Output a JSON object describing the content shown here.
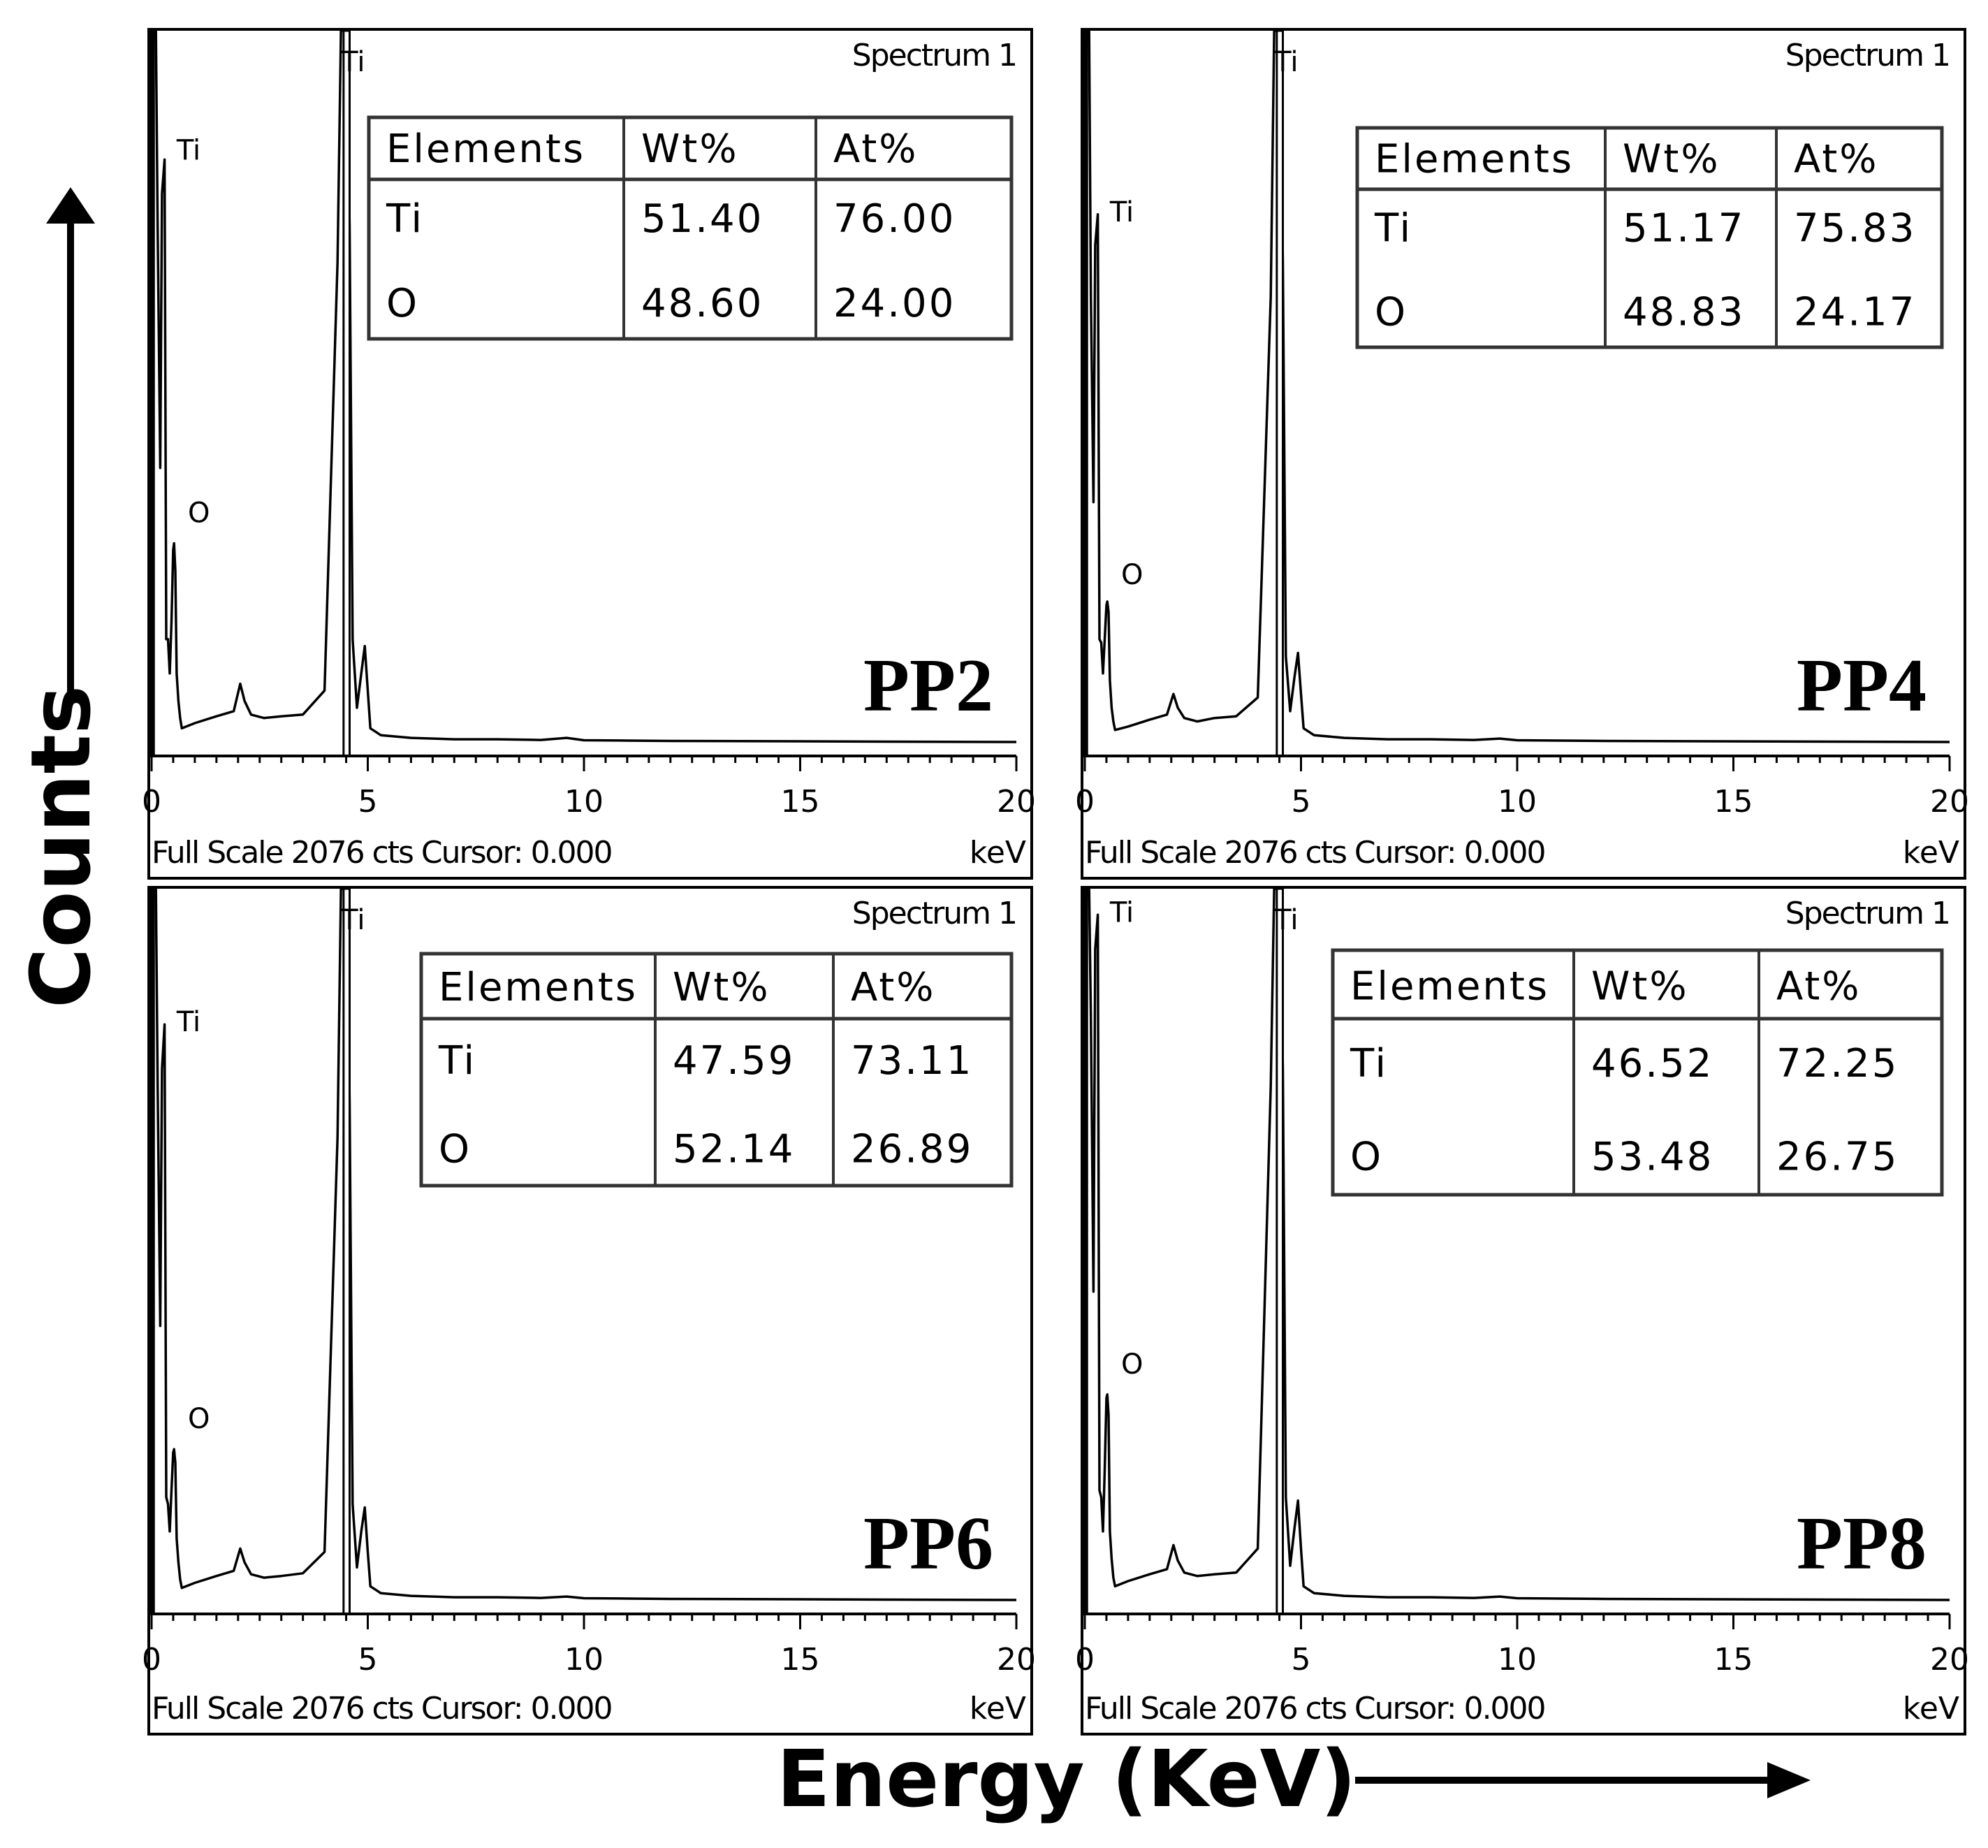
{
  "figure": {
    "y_axis_label": "Counts",
    "x_axis_label": "Energy (KeV)"
  },
  "chart_data": [
    {
      "type": "line",
      "panel": "PP2",
      "title": "Spectrum 1",
      "xlabel": "keV",
      "footer": "Full Scale 2076 cts Cursor: 0.000",
      "x_ticks": [
        "0",
        "5",
        "10",
        "15",
        "20"
      ],
      "xlim": [
        0,
        20
      ],
      "ylim": [
        0,
        2076
      ],
      "peaks": [
        {
          "label": "Ti",
          "x": 0.45,
          "y": 1720
        },
        {
          "label": "O",
          "x": 0.55,
          "y": 580
        },
        {
          "label": "Ti",
          "x": 4.51,
          "y": 2076
        }
      ],
      "x": [
        0,
        0.06,
        0.1,
        0.14,
        0.2,
        0.24,
        0.3,
        0.34,
        0.38,
        0.42,
        0.46,
        0.5,
        0.52,
        0.55,
        0.58,
        0.62,
        0.66,
        0.7,
        1,
        1.5,
        1.9,
        2.05,
        2.15,
        2.3,
        2.6,
        3,
        3.5,
        4,
        4.3,
        4.38,
        4.45,
        4.51,
        4.58,
        4.65,
        4.75,
        4.85,
        4.93,
        5,
        5.06,
        5.3,
        6,
        7,
        8,
        9,
        9.6,
        10,
        11,
        12,
        20
      ],
      "y": [
        2000,
        2076,
        2076,
        1500,
        800,
        1600,
        1700,
        300,
        300,
        200,
        350,
        560,
        580,
        500,
        200,
        120,
        70,
        40,
        55,
        75,
        90,
        170,
        120,
        80,
        70,
        75,
        80,
        150,
        1400,
        2076,
        2076,
        2076,
        1500,
        300,
        100,
        200,
        280,
        150,
        40,
        20,
        12,
        8,
        8,
        6,
        12,
        5,
        4,
        3,
        0
      ],
      "table": {
        "headers": [
          "Elements",
          "Wt%",
          "At%"
        ],
        "rows": [
          [
            "Ti",
            "51.40",
            "76.00"
          ],
          [
            "O",
            "48.60",
            "24.00"
          ]
        ]
      }
    },
    {
      "type": "line",
      "panel": "PP4",
      "title": "Spectrum 1",
      "xlabel": "keV",
      "footer": "Full Scale 2076 cts Cursor: 0.000",
      "x_ticks": [
        "0",
        "5",
        "10",
        "15",
        "20"
      ],
      "xlim": [
        0,
        20
      ],
      "ylim": [
        0,
        2076
      ],
      "peaks": [
        {
          "label": "Ti",
          "x": 0.45,
          "y": 1540
        },
        {
          "label": "O",
          "x": 0.55,
          "y": 400
        },
        {
          "label": "Ti",
          "x": 4.51,
          "y": 2076
        }
      ],
      "x": [
        0,
        0.06,
        0.1,
        0.14,
        0.2,
        0.24,
        0.3,
        0.34,
        0.38,
        0.42,
        0.46,
        0.5,
        0.52,
        0.55,
        0.58,
        0.62,
        0.66,
        0.7,
        1,
        1.5,
        1.9,
        2.05,
        2.15,
        2.3,
        2.6,
        3,
        3.5,
        4,
        4.3,
        4.38,
        4.45,
        4.51,
        4.58,
        4.65,
        4.75,
        4.85,
        4.93,
        5,
        5.06,
        5.3,
        6,
        7,
        8,
        9,
        9.6,
        10,
        11,
        12,
        20
      ],
      "y": [
        2000,
        2076,
        2076,
        1300,
        700,
        1450,
        1540,
        300,
        290,
        200,
        300,
        400,
        410,
        380,
        180,
        100,
        60,
        35,
        45,
        65,
        80,
        140,
        100,
        70,
        60,
        70,
        75,
        130,
        1300,
        2076,
        2076,
        2076,
        1400,
        250,
        90,
        190,
        260,
        140,
        40,
        20,
        12,
        8,
        8,
        6,
        10,
        5,
        4,
        3,
        0
      ],
      "table": {
        "headers": [
          "Elements",
          "Wt%",
          "At%"
        ],
        "rows": [
          [
            "Ti",
            "51.17",
            "75.83"
          ],
          [
            "O",
            "48.83",
            "24.17"
          ]
        ]
      }
    },
    {
      "type": "line",
      "panel": "PP6",
      "title": "Spectrum 1",
      "xlabel": "keV",
      "footer": "Full Scale 2076 cts Cursor: 0.000",
      "x_ticks": [
        "0",
        "5",
        "10",
        "15",
        "20"
      ],
      "xlim": [
        0,
        20
      ],
      "ylim": [
        0,
        2076
      ],
      "peaks": [
        {
          "label": "Ti",
          "x": 0.45,
          "y": 1680
        },
        {
          "label": "O",
          "x": 0.55,
          "y": 440
        },
        {
          "label": "Ti",
          "x": 4.51,
          "y": 2076
        }
      ],
      "x": [
        0,
        0.06,
        0.1,
        0.14,
        0.2,
        0.24,
        0.3,
        0.34,
        0.38,
        0.42,
        0.46,
        0.5,
        0.52,
        0.55,
        0.58,
        0.62,
        0.66,
        0.7,
        1,
        1.5,
        1.9,
        2.05,
        2.15,
        2.3,
        2.6,
        3,
        3.5,
        4,
        4.3,
        4.38,
        4.45,
        4.51,
        4.58,
        4.65,
        4.75,
        4.85,
        4.93,
        5,
        5.06,
        5.3,
        6,
        7,
        8,
        9,
        9.6,
        10,
        11,
        12,
        20
      ],
      "y": [
        2000,
        2076,
        2076,
        1500,
        800,
        1550,
        1680,
        300,
        280,
        200,
        320,
        430,
        440,
        400,
        180,
        110,
        60,
        35,
        50,
        70,
        85,
        150,
        110,
        75,
        65,
        70,
        78,
        140,
        1350,
        2076,
        2076,
        2076,
        1450,
        280,
        95,
        200,
        270,
        140,
        40,
        20,
        12,
        8,
        8,
        6,
        10,
        5,
        4,
        3,
        0
      ],
      "table": {
        "headers": [
          "Elements",
          "Wt%",
          "At%"
        ],
        "rows": [
          [
            "Ti",
            "47.59",
            "73.11"
          ],
          [
            "O",
            "52.14",
            "26.89"
          ]
        ]
      }
    },
    {
      "type": "line",
      "panel": "PP8",
      "title": "Spectrum 1",
      "xlabel": "keV",
      "footer": "Full Scale 2076 cts Cursor: 0.000",
      "x_ticks": [
        "0",
        "5",
        "10",
        "15",
        "20"
      ],
      "xlim": [
        0,
        20
      ],
      "ylim": [
        0,
        2076
      ],
      "peaks": [
        {
          "label": "Ti",
          "x": 0.45,
          "y": 2000
        },
        {
          "label": "O",
          "x": 0.55,
          "y": 600
        },
        {
          "label": "Ti",
          "x": 4.51,
          "y": 2076
        }
      ],
      "x": [
        0,
        0.06,
        0.1,
        0.14,
        0.2,
        0.24,
        0.3,
        0.34,
        0.38,
        0.42,
        0.46,
        0.5,
        0.52,
        0.55,
        0.58,
        0.62,
        0.66,
        0.7,
        1,
        1.5,
        1.9,
        2.05,
        2.15,
        2.3,
        2.6,
        3,
        3.5,
        4,
        4.3,
        4.38,
        4.45,
        4.51,
        4.58,
        4.65,
        4.75,
        4.85,
        4.93,
        5,
        5.06,
        5.3,
        6,
        7,
        8,
        9,
        9.6,
        10,
        11,
        12,
        20
      ],
      "y": [
        2000,
        2076,
        2076,
        1700,
        900,
        1900,
        2000,
        320,
        300,
        200,
        380,
        590,
        600,
        540,
        200,
        120,
        65,
        40,
        55,
        75,
        90,
        160,
        115,
        80,
        70,
        75,
        80,
        150,
        1500,
        2076,
        2076,
        2076,
        1550,
        300,
        100,
        210,
        290,
        150,
        40,
        20,
        12,
        8,
        8,
        6,
        10,
        5,
        4,
        3,
        0
      ],
      "table": {
        "headers": [
          "Elements",
          "Wt%",
          "At%"
        ],
        "rows": [
          [
            "Ti",
            "46.52",
            "72.25"
          ],
          [
            "O",
            "53.48",
            "26.75"
          ]
        ]
      }
    }
  ]
}
